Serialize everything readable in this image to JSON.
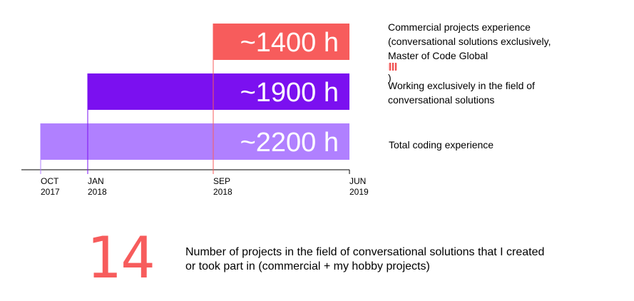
{
  "chart_data": {
    "type": "bar",
    "orientation": "horizontal-timeline",
    "axis": {
      "ticks": [
        {
          "line1": "OCT",
          "line2": "2017",
          "date": "2017-10"
        },
        {
          "line1": "JAN",
          "line2": "2018",
          "date": "2018-01"
        },
        {
          "line1": "SEP",
          "line2": "2018",
          "date": "2018-09"
        },
        {
          "line1": "JUN",
          "line2": "2019",
          "date": "2019-06"
        }
      ]
    },
    "bars": [
      {
        "label": "~1400 h",
        "start": "2018-09",
        "end": "2019-06",
        "color": "#f75c5c",
        "description": [
          "Commercial projects experience",
          "(conversational solutions exclusively,",
          "Master of Code Global",
          ")"
        ]
      },
      {
        "label": "~1900 h",
        "start": "2018-01",
        "end": "2019-06",
        "color": "#7b10f0",
        "description": [
          "Working exclusively in the field of",
          "conversational solutions"
        ]
      },
      {
        "label": "~2200 h",
        "start": "2017-10",
        "end": "2019-06",
        "color": "#b080ff",
        "description": [
          "Total coding experience"
        ]
      }
    ]
  },
  "stat": {
    "number": "14",
    "line1": "Number of projects in the field of conversational solutions that I created",
    "line2": "or took part in (commercial + my hobby projects)"
  },
  "colors": {
    "axis": "#000000",
    "accent_red": "#f75c5c",
    "accent_purple": "#7b10f0",
    "accent_lavender": "#b080ff"
  }
}
